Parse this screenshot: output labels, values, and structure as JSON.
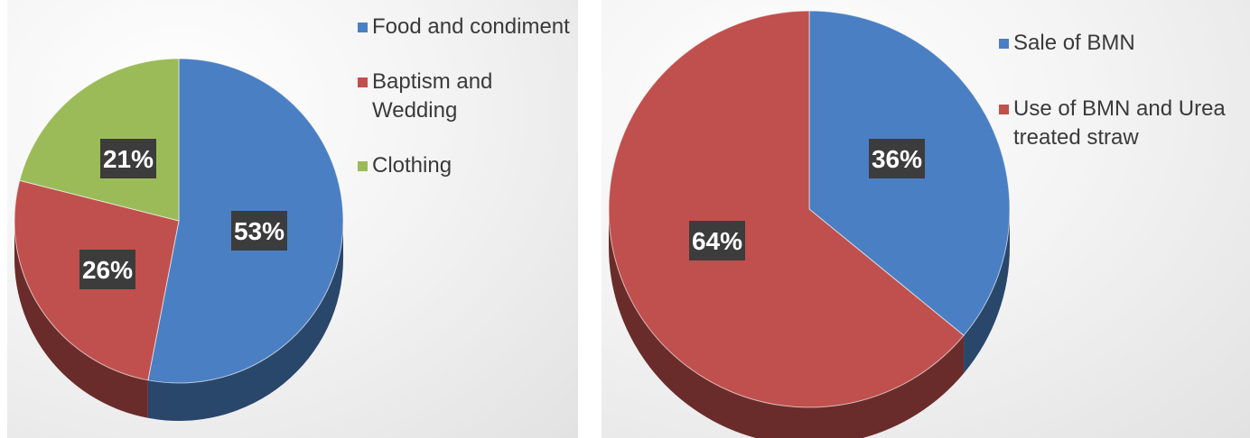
{
  "chart_data": [
    {
      "type": "pie",
      "title": "",
      "legend_position": "right",
      "slices": [
        {
          "label": "Food and condiment",
          "value": 53,
          "display": "53%",
          "color": "#4a7fc3"
        },
        {
          "label": "Baptism and Wedding",
          "value": 26,
          "display": "26%",
          "color": "#c0504d"
        },
        {
          "label": "Clothing",
          "value": 21,
          "display": "21%",
          "color": "#9bbb59"
        }
      ]
    },
    {
      "type": "pie",
      "title": "",
      "legend_position": "right",
      "slices": [
        {
          "label": "Sale of BMN",
          "value": 36,
          "display": "36%",
          "color": "#4a7fc3"
        },
        {
          "label": "Use of BMN and Urea treated straw",
          "value": 64,
          "display": "64%",
          "color": "#c0504d"
        }
      ]
    }
  ]
}
